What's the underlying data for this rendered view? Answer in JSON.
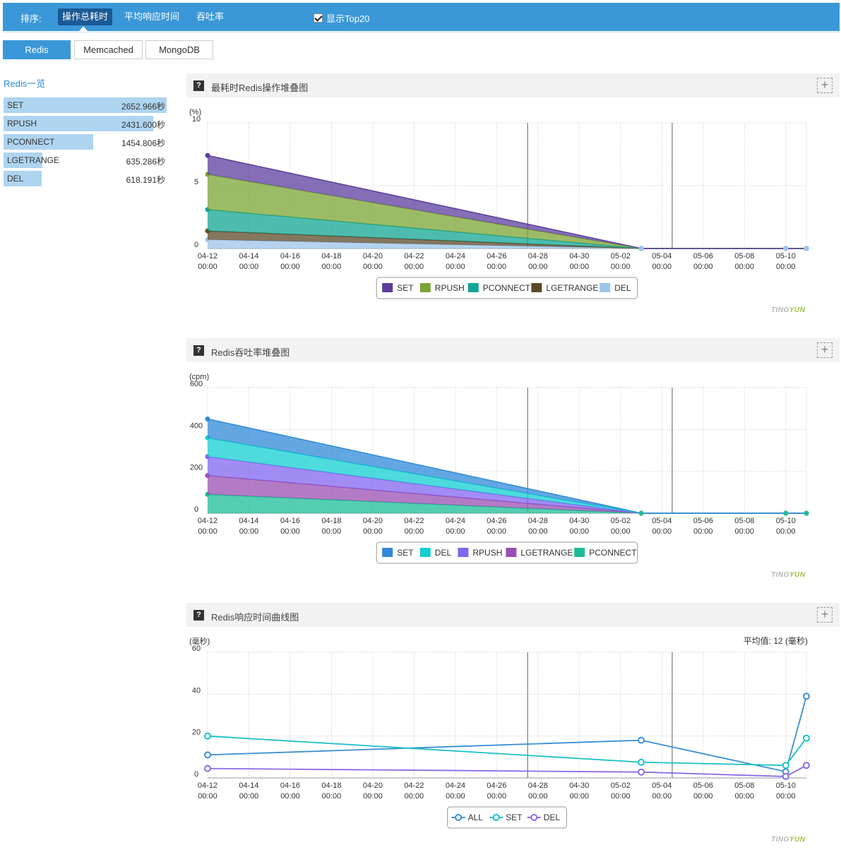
{
  "topbar": {
    "sort_label": "排序:",
    "sort_options": [
      "操作总耗时",
      "平均响应时间",
      "吞吐率"
    ],
    "top20_label": "显示Top20",
    "top20_checked": true
  },
  "db_tabs": [
    "Redis",
    "Memcached",
    "MongoDB"
  ],
  "overview": {
    "title": "Redis一览",
    "items": [
      {
        "name": "SET",
        "value": "2652.966秒",
        "ratio": 1.0
      },
      {
        "name": "RPUSH",
        "value": "2431.600秒",
        "ratio": 0.917
      },
      {
        "name": "PCONNECT",
        "value": "1454.806秒",
        "ratio": 0.548
      },
      {
        "name": "LGETRANGE",
        "value": "635.286秒",
        "ratio": 0.239
      },
      {
        "name": "DEL",
        "value": "618.191秒",
        "ratio": 0.233
      }
    ]
  },
  "panels": [
    {
      "title": "最耗时Redis操作堆叠图"
    },
    {
      "title": "Redis吞吐率堆叠图"
    },
    {
      "title": "Redis响应时间曲线图"
    }
  ],
  "watermark": {
    "part1": "TING",
    "part2": "YUN"
  },
  "chart_data": [
    {
      "type": "area",
      "stacked": true,
      "ylabel": "(%)",
      "ylim": [
        0,
        10
      ],
      "yticks": [
        0,
        5,
        10
      ],
      "x_start": "04-12",
      "x_end": "05-11",
      "xticks": [
        "04-12",
        "04-14",
        "04-16",
        "04-18",
        "04-20",
        "04-22",
        "04-24",
        "04-26",
        "04-28",
        "04-30",
        "05-02",
        "05-04",
        "05-06",
        "05-08",
        "05-10"
      ],
      "xtick_sub": "00:00",
      "marker_lines": [
        "04-27 12:00",
        "05-04 12:00"
      ],
      "x": [
        "04-12",
        "05-03",
        "05-10",
        "05-11"
      ],
      "series": [
        {
          "name": "SET",
          "color": "#5b3e9e",
          "values": [
            1.5,
            0,
            0,
            0
          ]
        },
        {
          "name": "RPUSH",
          "color": "#7ba434",
          "values": [
            2.8,
            0,
            0,
            0
          ]
        },
        {
          "name": "PCONNECT",
          "color": "#11a594",
          "values": [
            1.7,
            0,
            0,
            0
          ]
        },
        {
          "name": "LGETRANGE",
          "color": "#5c4a28",
          "values": [
            0.7,
            0,
            0,
            0
          ]
        },
        {
          "name": "DEL",
          "color": "#9cc4ea",
          "values": [
            0.7,
            0,
            0,
            0
          ]
        }
      ],
      "grid": true,
      "legend_position": "bottom"
    },
    {
      "type": "area",
      "stacked": true,
      "ylabel": "(cpm)",
      "ylim": [
        0,
        600
      ],
      "yticks": [
        0,
        200,
        400,
        600
      ],
      "x_start": "04-12",
      "x_end": "05-11",
      "xticks": [
        "04-12",
        "04-14",
        "04-16",
        "04-18",
        "04-20",
        "04-22",
        "04-24",
        "04-26",
        "04-28",
        "04-30",
        "05-02",
        "05-04",
        "05-06",
        "05-08",
        "05-10"
      ],
      "xtick_sub": "00:00",
      "marker_lines": [
        "04-27 12:00",
        "05-04 12:00"
      ],
      "x": [
        "04-12",
        "05-03",
        "05-10",
        "05-11"
      ],
      "series": [
        {
          "name": "SET",
          "color": "#2f8ad8",
          "values": [
            90,
            0,
            0,
            0
          ]
        },
        {
          "name": "DEL",
          "color": "#13cfd1",
          "values": [
            90,
            0,
            0,
            0
          ]
        },
        {
          "name": "RPUSH",
          "color": "#8166f0",
          "values": [
            90,
            0,
            0,
            0
          ]
        },
        {
          "name": "LGETRANGE",
          "color": "#9a4fb3",
          "values": [
            90,
            0,
            0,
            0
          ]
        },
        {
          "name": "PCONNECT",
          "color": "#1bbd95",
          "values": [
            90,
            0,
            0,
            0
          ]
        }
      ],
      "grid": true,
      "legend_position": "bottom"
    },
    {
      "type": "line",
      "ylabel": "(毫秒)",
      "avg_label": "平均值: 12 (毫秒)",
      "ylim": [
        0,
        60
      ],
      "yticks": [
        0,
        20,
        40,
        60
      ],
      "x_start": "04-12",
      "x_end": "05-11",
      "xticks": [
        "04-12",
        "04-14",
        "04-16",
        "04-18",
        "04-20",
        "04-22",
        "04-24",
        "04-26",
        "04-28",
        "04-30",
        "05-02",
        "05-04",
        "05-06",
        "05-08",
        "05-10"
      ],
      "xtick_sub": "00:00",
      "marker_lines": [
        "04-27 12:00",
        "05-04 12:00"
      ],
      "x": [
        "04-12",
        "05-03",
        "05-10",
        "05-11"
      ],
      "series": [
        {
          "name": "ALL",
          "color": "#3a8fd4",
          "values": [
            11,
            18,
            3,
            39
          ]
        },
        {
          "name": "SET",
          "color": "#19c1c7",
          "values": [
            20,
            7.5,
            6,
            19
          ]
        },
        {
          "name": "DEL",
          "color": "#8a6ae6",
          "values": [
            4.5,
            2.8,
            0.7,
            6
          ]
        }
      ],
      "grid": true,
      "legend_position": "bottom"
    }
  ]
}
